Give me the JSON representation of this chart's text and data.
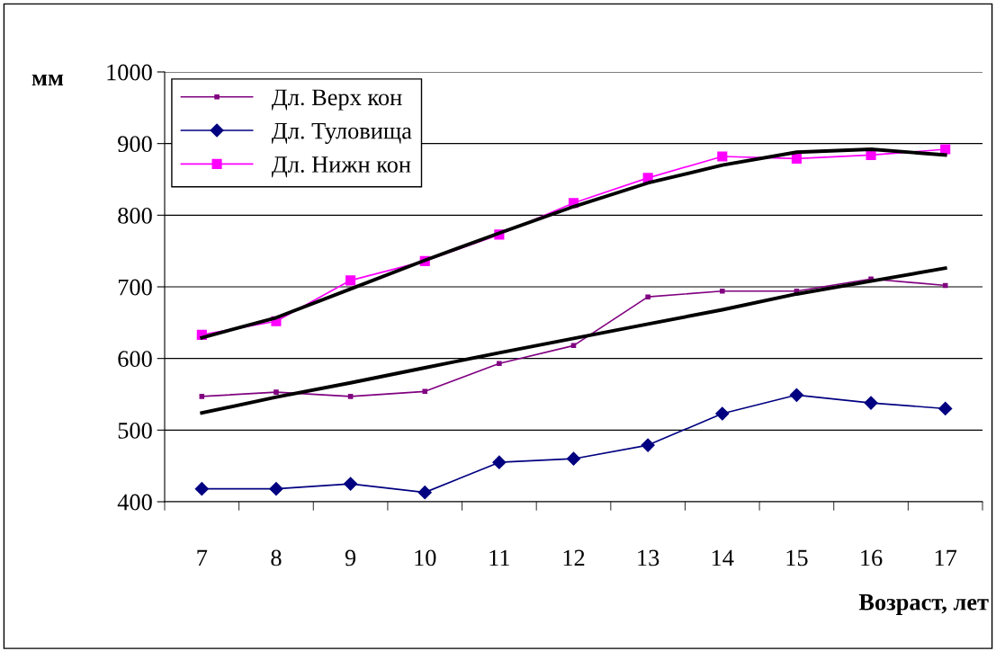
{
  "chart_data": {
    "type": "line",
    "ylabel": "мм",
    "xlabel": "Возраст, лет",
    "categories": [
      "7",
      "8",
      "9",
      "10",
      "11",
      "12",
      "13",
      "14",
      "15",
      "16",
      "17"
    ],
    "series": [
      {
        "name": "Дл. Верх кон",
        "color": "#800080",
        "marker": "square",
        "values": [
          547,
          553,
          547,
          554,
          593,
          618,
          686,
          694,
          694,
          711,
          702
        ]
      },
      {
        "name": "Дл. Туловища",
        "color": "#000080",
        "marker": "diamond",
        "values": [
          418,
          418,
          425,
          413,
          455,
          460,
          479,
          523,
          549,
          538,
          530
        ]
      },
      {
        "name": "Дл. Нижн кон",
        "color": "#ff00ff",
        "marker": "square",
        "values": [
          633,
          652,
          709,
          736,
          773,
          817,
          852,
          882,
          879,
          884,
          892
        ]
      },
      {
        "color": "#000000",
        "marker": "none",
        "values": [
          629,
          657,
          697,
          737,
          775,
          812,
          845,
          870,
          888,
          892,
          884
        ]
      },
      {
        "color": "#000000",
        "marker": "none",
        "values": [
          524,
          546,
          566,
          587,
          608,
          628,
          648,
          668,
          690,
          708,
          726
        ]
      }
    ],
    "ylim": [
      400,
      1000
    ],
    "yticks": [
      400,
      500,
      600,
      700,
      800,
      900,
      1000
    ],
    "grid": "y",
    "legend": "top left",
    "line_style": "solid"
  }
}
